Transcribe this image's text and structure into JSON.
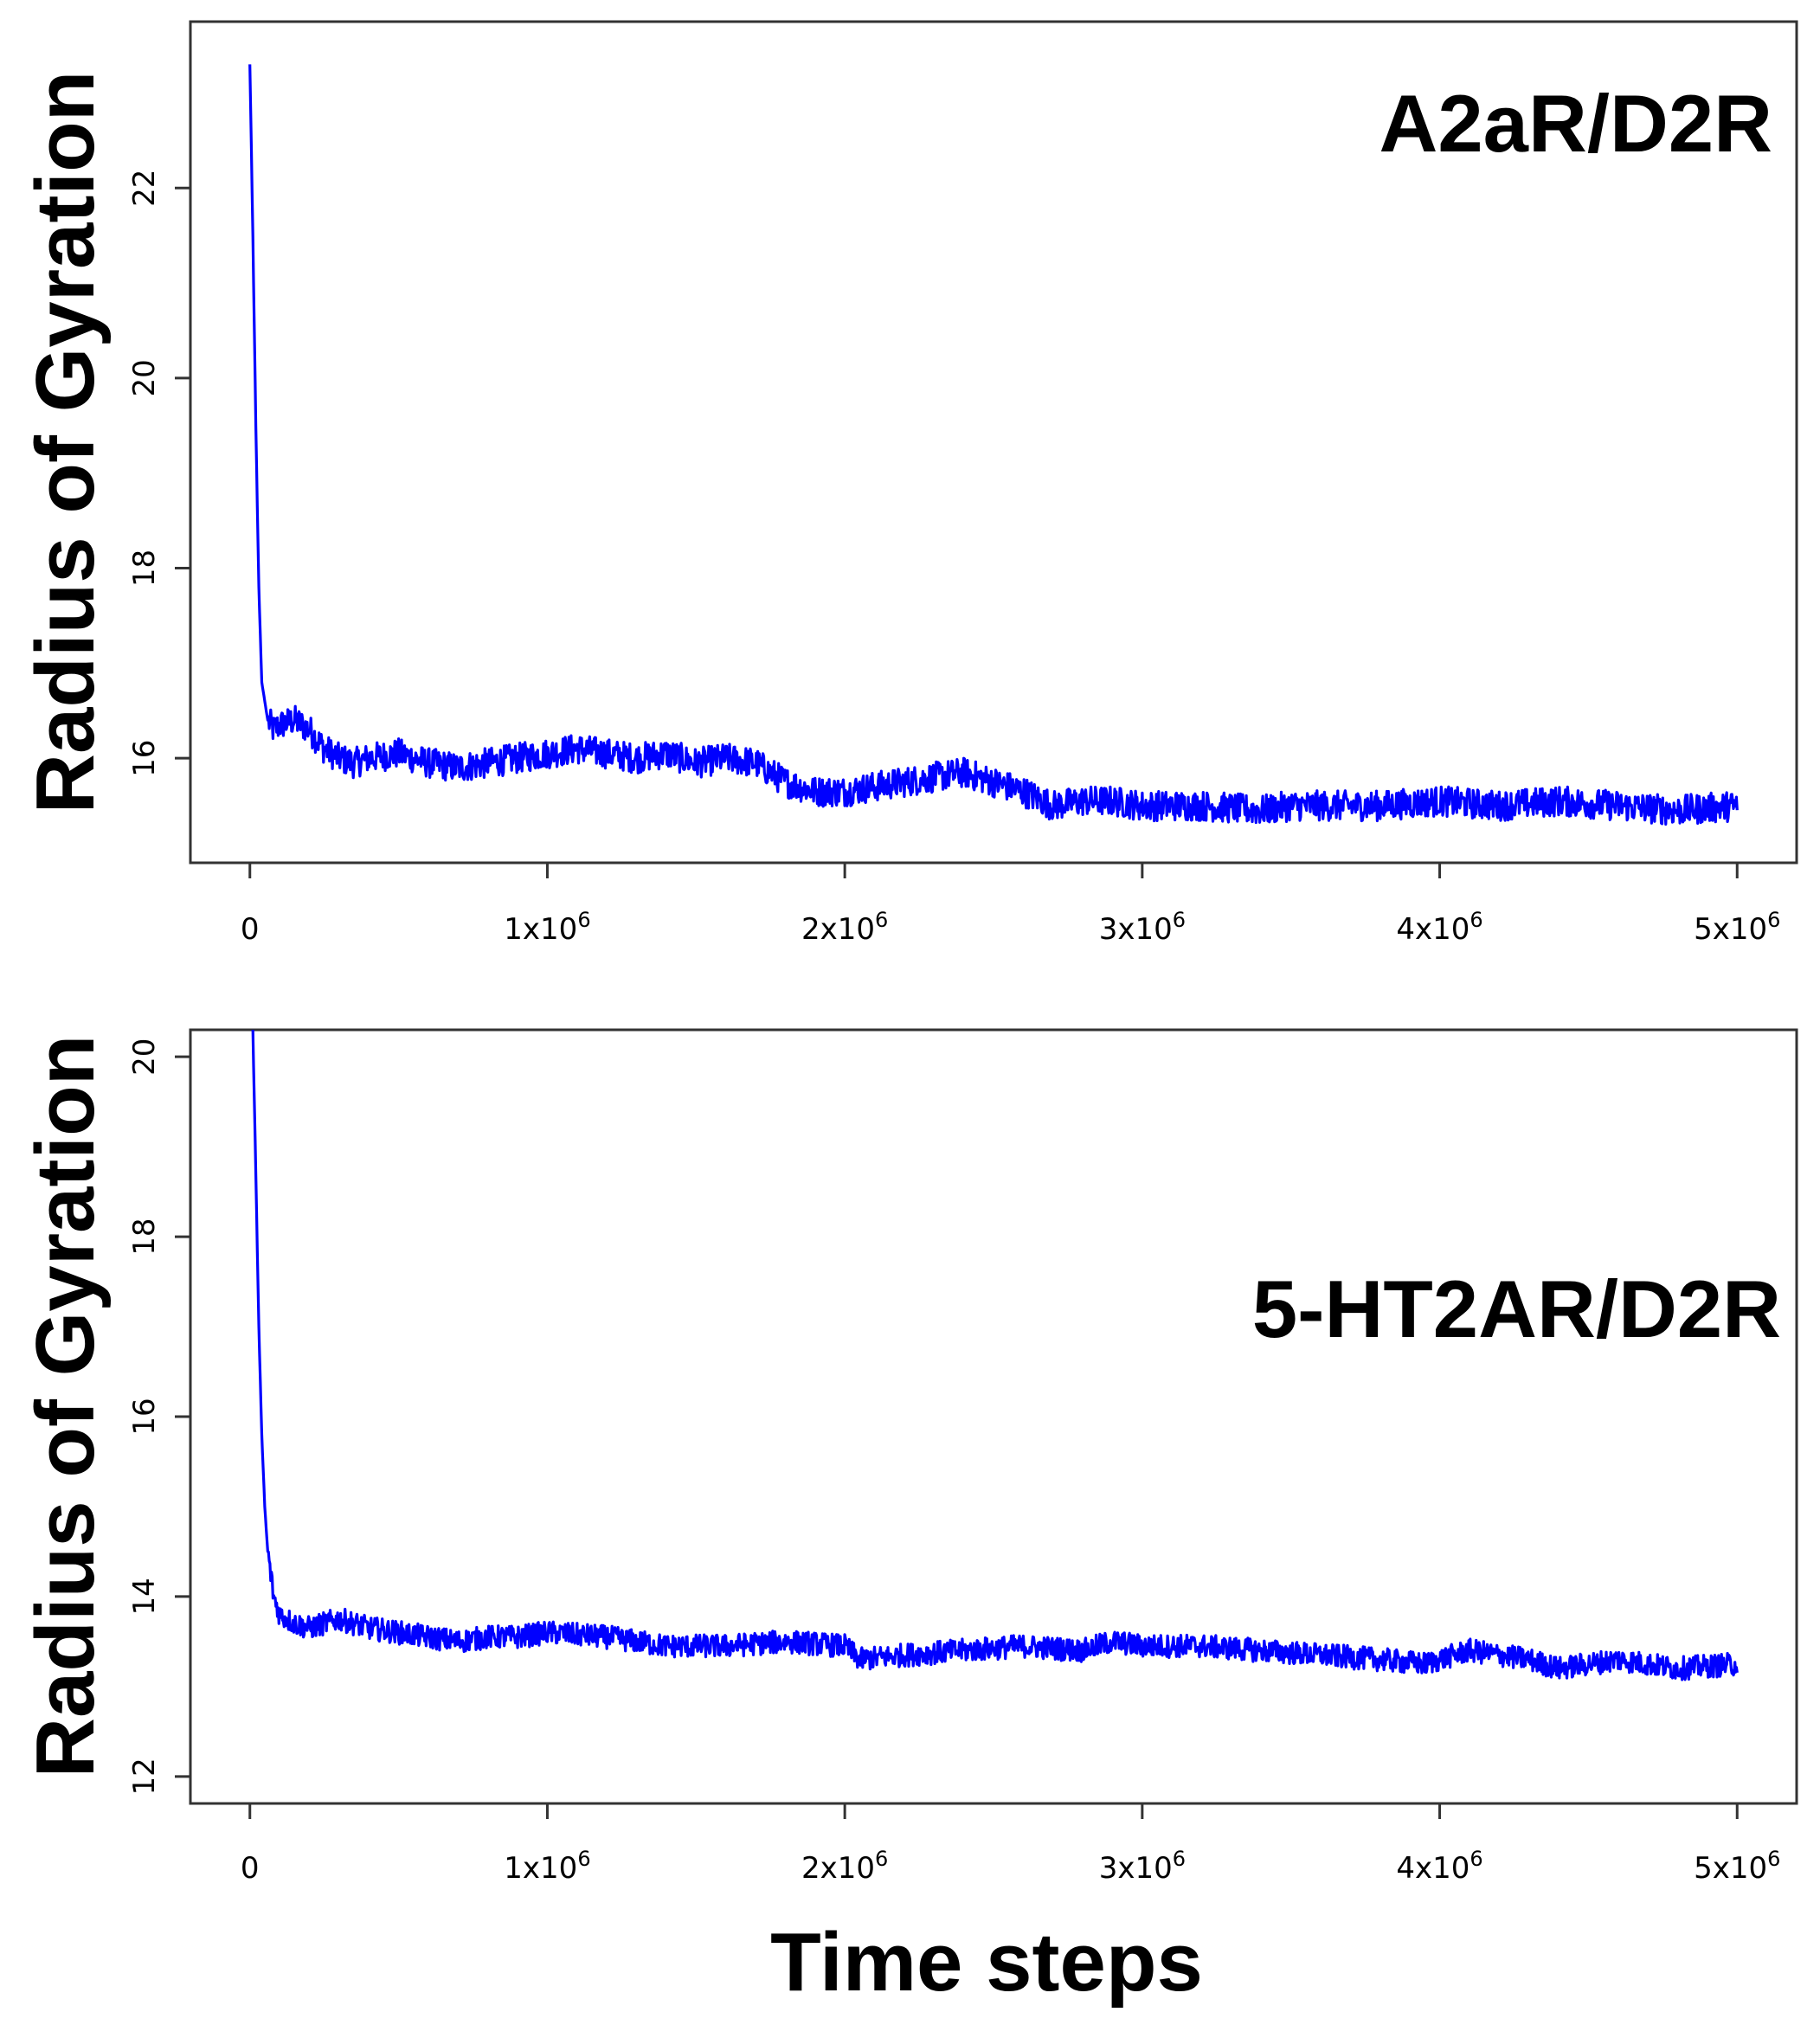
{
  "chart_data": [
    {
      "type": "line",
      "title": "A2aR/D2R",
      "ylabel": "Radius of Gyration",
      "xlabel": "",
      "xlim": [
        -200000,
        5200000
      ],
      "ylim": [
        14.9,
        23.75
      ],
      "grid": false,
      "xticks": [
        {
          "value": 0,
          "base": "0",
          "exp": ""
        },
        {
          "value": 1000000,
          "base": "1x10",
          "exp": "6"
        },
        {
          "value": 2000000,
          "base": "2x10",
          "exp": "6"
        },
        {
          "value": 3000000,
          "base": "3x10",
          "exp": "6"
        },
        {
          "value": 4000000,
          "base": "4x10",
          "exp": "6"
        },
        {
          "value": 5000000,
          "base": "5x10",
          "exp": "6"
        }
      ],
      "yticks": [
        16,
        18,
        20,
        22
      ],
      "series": [
        {
          "color": "#0000ff",
          "noise": 0.16,
          "x": [
            0,
            10000,
            20000,
            30000,
            40000,
            60000,
            80000,
            100000,
            150000,
            200000,
            250000,
            300000,
            350000,
            400000,
            500000,
            600000,
            700000,
            800000,
            900000,
            1000000,
            1100000,
            1200000,
            1300000,
            1400000,
            1500000,
            1600000,
            1700000,
            1750000,
            1800000,
            1900000,
            2000000,
            2100000,
            2200000,
            2300000,
            2400000,
            2450000,
            2500000,
            2600000,
            2700000,
            2800000,
            2900000,
            3000000,
            3200000,
            3400000,
            3500000,
            3600000,
            3800000,
            4000000,
            4200000,
            4400000,
            4600000,
            4800000,
            5000000
          ],
          "values": [
            23.3,
            21.5,
            19.5,
            17.8,
            16.8,
            16.4,
            16.3,
            16.35,
            16.4,
            16.3,
            16.1,
            16.0,
            15.95,
            16.0,
            16.05,
            15.95,
            15.9,
            15.95,
            16.0,
            16.05,
            16.1,
            16.05,
            16.0,
            16.05,
            15.95,
            16.0,
            15.95,
            15.85,
            15.75,
            15.65,
            15.65,
            15.7,
            15.75,
            15.8,
            15.85,
            15.8,
            15.75,
            15.65,
            15.5,
            15.55,
            15.55,
            15.5,
            15.5,
            15.45,
            15.5,
            15.5,
            15.5,
            15.55,
            15.5,
            15.55,
            15.5,
            15.45,
            15.5
          ]
        }
      ]
    },
    {
      "type": "line",
      "title": "5-HT2AR/D2R",
      "ylabel": "Radius of Gyration",
      "xlabel": "Time steps",
      "xlim": [
        -200000,
        5200000
      ],
      "ylim": [
        11.7,
        20.3
      ],
      "grid": false,
      "xticks": [
        {
          "value": 0,
          "base": "0",
          "exp": ""
        },
        {
          "value": 1000000,
          "base": "1x10",
          "exp": "6"
        },
        {
          "value": 2000000,
          "base": "2x10",
          "exp": "6"
        },
        {
          "value": 3000000,
          "base": "3x10",
          "exp": "6"
        },
        {
          "value": 4000000,
          "base": "4x10",
          "exp": "6"
        },
        {
          "value": 5000000,
          "base": "5x10",
          "exp": "6"
        }
      ],
      "yticks": [
        12,
        14,
        16,
        18,
        20
      ],
      "series": [
        {
          "color": "#0000ff",
          "noise": 0.13,
          "x": [
            10000,
            20000,
            30000,
            40000,
            50000,
            60000,
            80000,
            100000,
            150000,
            200000,
            250000,
            300000,
            400000,
            500000,
            600000,
            700000,
            800000,
            900000,
            1000000,
            1200000,
            1400000,
            1600000,
            1800000,
            2000000,
            2050000,
            2200000,
            2400000,
            2600000,
            2800000,
            2900000,
            3000000,
            3200000,
            3400000,
            3600000,
            3800000,
            3950000,
            4100000,
            4300000,
            4400000,
            4600000,
            4800000,
            5000000
          ],
          "values": [
            20.3,
            18.7,
            17.0,
            15.8,
            15.0,
            14.5,
            14.0,
            13.8,
            13.7,
            13.65,
            13.7,
            13.75,
            13.65,
            13.6,
            13.55,
            13.5,
            13.55,
            13.55,
            13.6,
            13.55,
            13.45,
            13.45,
            13.5,
            13.45,
            13.3,
            13.35,
            13.4,
            13.45,
            13.4,
            13.5,
            13.45,
            13.45,
            13.4,
            13.35,
            13.3,
            13.25,
            13.4,
            13.3,
            13.2,
            13.3,
            13.2,
            13.25
          ]
        }
      ]
    }
  ]
}
